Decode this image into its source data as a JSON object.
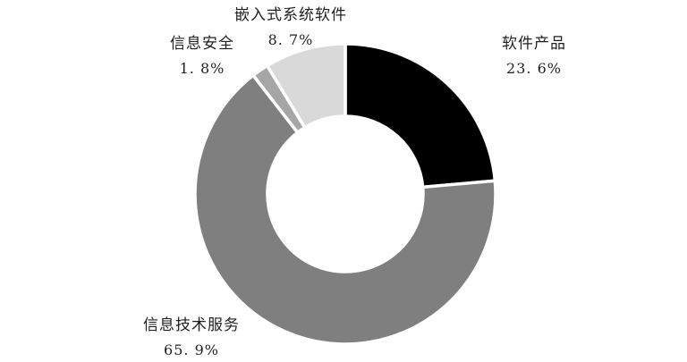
{
  "chart_data": {
    "type": "pie",
    "subtype": "donut",
    "title": "",
    "legend_position": "none",
    "background": "#ffffff",
    "border_color": "#ffffff",
    "start_angle_deg": 0,
    "direction": "clockwise",
    "donut_hole_ratio": 0.518,
    "segments": [
      {
        "label": "软件产品",
        "value": 23.6,
        "display": "23. 6%",
        "color": "#000000"
      },
      {
        "label": "信息技术服务",
        "value": 65.9,
        "display": "65. 9%",
        "color": "#7f7f7f"
      },
      {
        "label": "信息安全",
        "value": 1.8,
        "display": "1. 8%",
        "color": "#a6a6a6"
      },
      {
        "label": "嵌入式系统软件",
        "value": 8.7,
        "display": "8. 7%",
        "color": "#d9d9d9"
      }
    ]
  }
}
